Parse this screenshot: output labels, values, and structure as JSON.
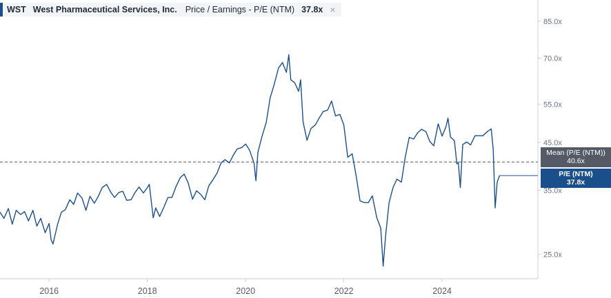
{
  "header": {
    "ticker": "WST",
    "company": "West Pharmaceutical Services, Inc.",
    "metric": "Price / Earnings - P/E (NTM)",
    "current_value": "37.8x",
    "close_glyph": "×"
  },
  "mean_tag": {
    "label": "Mean (P/E (NTM))",
    "value": "40.6x"
  },
  "current_tag": {
    "label": "P/E (NTM)",
    "value": "37.8x"
  },
  "colors": {
    "line": "#1a4f8c",
    "mean_line": "#555b66",
    "mean_tag": "#555b66",
    "current_tag": "#1a4f8c"
  },
  "chart_data": {
    "type": "line",
    "scale": "log",
    "ylim": [
      22,
      95
    ],
    "xlim": [
      2015.0,
      2025.95
    ],
    "y_ticks": [
      {
        "value": 85,
        "label": "85.0x"
      },
      {
        "value": 70,
        "label": "70.0x"
      },
      {
        "value": 55,
        "label": "55.0x"
      },
      {
        "value": 45,
        "label": "45.0x"
      },
      {
        "value": 35,
        "label": "35.0x"
      },
      {
        "value": 25,
        "label": "25.0x"
      }
    ],
    "x_ticks": [
      {
        "value": 2016,
        "label": "2016"
      },
      {
        "value": 2018,
        "label": "2018"
      },
      {
        "value": 2020,
        "label": "2020"
      },
      {
        "value": 2022,
        "label": "2022"
      },
      {
        "value": 2024,
        "label": "2024"
      }
    ],
    "mean": 40.6,
    "current": 37.8,
    "series": [
      {
        "values": [
          [
            2015.0,
            31.2
          ],
          [
            2015.08,
            30.2
          ],
          [
            2015.17,
            31.8
          ],
          [
            2015.25,
            29.3
          ],
          [
            2015.33,
            31.5
          ],
          [
            2015.42,
            30.8
          ],
          [
            2015.5,
            31.3
          ],
          [
            2015.58,
            29.8
          ],
          [
            2015.67,
            31.5
          ],
          [
            2015.75,
            29.0
          ],
          [
            2015.83,
            30.2
          ],
          [
            2015.92,
            28.0
          ],
          [
            2016.0,
            29.4
          ],
          [
            2016.04,
            27.0
          ],
          [
            2016.08,
            26.4
          ],
          [
            2016.17,
            29.2
          ],
          [
            2016.25,
            31.2
          ],
          [
            2016.33,
            31.6
          ],
          [
            2016.42,
            33.3
          ],
          [
            2016.5,
            32.5
          ],
          [
            2016.58,
            34.5
          ],
          [
            2016.67,
            33.6
          ],
          [
            2016.75,
            31.5
          ],
          [
            2016.83,
            33.9
          ],
          [
            2016.92,
            32.7
          ],
          [
            2017.0,
            33.9
          ],
          [
            2017.08,
            35.5
          ],
          [
            2017.17,
            36.1
          ],
          [
            2017.25,
            34.7
          ],
          [
            2017.33,
            33.7
          ],
          [
            2017.42,
            34.6
          ],
          [
            2017.5,
            34.8
          ],
          [
            2017.58,
            33.2
          ],
          [
            2017.67,
            33.3
          ],
          [
            2017.75,
            34.6
          ],
          [
            2017.83,
            35.6
          ],
          [
            2017.92,
            34.5
          ],
          [
            2018.0,
            35.5
          ],
          [
            2018.04,
            36.1
          ],
          [
            2018.08,
            33.0
          ],
          [
            2018.12,
            30.3
          ],
          [
            2018.17,
            31.9
          ],
          [
            2018.25,
            30.5
          ],
          [
            2018.33,
            31.9
          ],
          [
            2018.42,
            33.7
          ],
          [
            2018.5,
            33.7
          ],
          [
            2018.58,
            35.6
          ],
          [
            2018.67,
            37.4
          ],
          [
            2018.75,
            38.1
          ],
          [
            2018.83,
            36.4
          ],
          [
            2018.92,
            33.4
          ],
          [
            2019.0,
            34.9
          ],
          [
            2019.08,
            34.3
          ],
          [
            2019.17,
            33.3
          ],
          [
            2019.25,
            35.8
          ],
          [
            2019.33,
            36.9
          ],
          [
            2019.42,
            38.3
          ],
          [
            2019.5,
            40.4
          ],
          [
            2019.58,
            41.1
          ],
          [
            2019.67,
            40.4
          ],
          [
            2019.75,
            42.1
          ],
          [
            2019.83,
            43.5
          ],
          [
            2019.92,
            43.8
          ],
          [
            2020.0,
            44.6
          ],
          [
            2020.08,
            43.2
          ],
          [
            2020.17,
            40.4
          ],
          [
            2020.21,
            36.8
          ],
          [
            2020.25,
            42.7
          ],
          [
            2020.33,
            46.3
          ],
          [
            2020.42,
            50.0
          ],
          [
            2020.5,
            56.9
          ],
          [
            2020.58,
            60.9
          ],
          [
            2020.67,
            66.5
          ],
          [
            2020.75,
            68.4
          ],
          [
            2020.83,
            65.0
          ],
          [
            2020.88,
            71.3
          ],
          [
            2020.92,
            62.5
          ],
          [
            2021.0,
            61.5
          ],
          [
            2021.08,
            58.8
          ],
          [
            2021.12,
            62.5
          ],
          [
            2021.17,
            50.1
          ],
          [
            2021.25,
            45.5
          ],
          [
            2021.33,
            48.4
          ],
          [
            2021.42,
            49.3
          ],
          [
            2021.5,
            51.2
          ],
          [
            2021.58,
            52.9
          ],
          [
            2021.67,
            53.3
          ],
          [
            2021.75,
            55.9
          ],
          [
            2021.83,
            51.7
          ],
          [
            2021.92,
            52.1
          ],
          [
            2022.0,
            49.3
          ],
          [
            2022.08,
            41.6
          ],
          [
            2022.17,
            42.4
          ],
          [
            2022.25,
            37.8
          ],
          [
            2022.33,
            33.1
          ],
          [
            2022.42,
            32.8
          ],
          [
            2022.5,
            32.8
          ],
          [
            2022.58,
            34.0
          ],
          [
            2022.67,
            30.3
          ],
          [
            2022.75,
            28.7
          ],
          [
            2022.8,
            23.5
          ],
          [
            2022.85,
            27.6
          ],
          [
            2022.92,
            32.8
          ],
          [
            2023.0,
            35.5
          ],
          [
            2023.08,
            37.1
          ],
          [
            2023.17,
            36.5
          ],
          [
            2023.25,
            41.7
          ],
          [
            2023.33,
            46.2
          ],
          [
            2023.42,
            45.8
          ],
          [
            2023.5,
            47.3
          ],
          [
            2023.58,
            48.2
          ],
          [
            2023.67,
            47.6
          ],
          [
            2023.75,
            45.2
          ],
          [
            2023.83,
            44.2
          ],
          [
            2023.92,
            49.6
          ],
          [
            2024.0,
            46.5
          ],
          [
            2024.08,
            48.9
          ],
          [
            2024.12,
            51.1
          ],
          [
            2024.17,
            46.3
          ],
          [
            2024.25,
            45.4
          ],
          [
            2024.3,
            40.2
          ],
          [
            2024.33,
            40.5
          ],
          [
            2024.37,
            35.5
          ],
          [
            2024.42,
            44.5
          ],
          [
            2024.5,
            45.1
          ],
          [
            2024.58,
            44.4
          ],
          [
            2024.67,
            46.6
          ],
          [
            2024.75,
            46.6
          ],
          [
            2024.83,
            46.6
          ],
          [
            2024.92,
            47.6
          ],
          [
            2025.0,
            48.3
          ],
          [
            2025.04,
            43.4
          ],
          [
            2025.08,
            31.9
          ],
          [
            2025.12,
            36.5
          ],
          [
            2025.17,
            37.8
          ]
        ]
      }
    ]
  }
}
